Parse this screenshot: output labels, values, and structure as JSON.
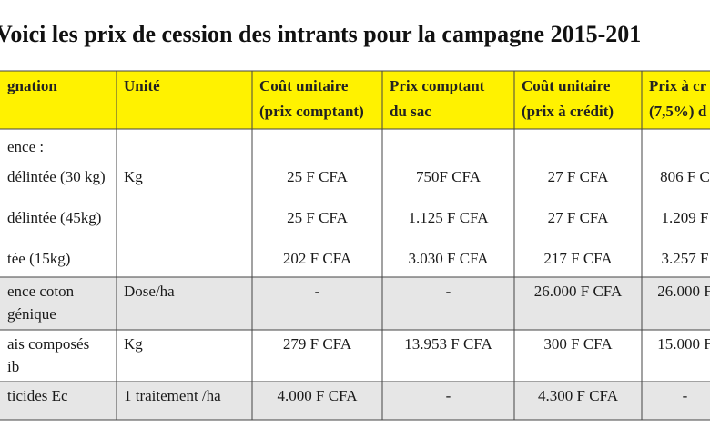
{
  "title": "Voici les prix de cession des intrants pour la campagne 2015-201",
  "table": {
    "header": [
      [
        "gnation"
      ],
      [
        "Unité"
      ],
      [
        "Coût unitaire",
        "(prix comptant)"
      ],
      [
        "Prix comptant",
        "du sac"
      ],
      [
        "Coût unitaire",
        "(prix à crédit)"
      ],
      [
        "Prix à cr",
        "(7,5%) d"
      ]
    ],
    "rows": [
      [
        [
          "ence :",
          "délintée (30 kg)",
          "délintée (45kg)",
          "tée (15kg)"
        ],
        [
          "Kg"
        ],
        [
          "25 F CFA",
          "25 F CFA",
          "202 F CFA"
        ],
        [
          "750F CFA",
          "1.125 F CFA",
          "3.030 F CFA"
        ],
        [
          "27 F CFA",
          "27 F CFA",
          "217 F CFA"
        ],
        [
          "806 F C",
          "1.209 F",
          "3.257 F"
        ]
      ],
      [
        [
          "ence coton",
          "génique"
        ],
        [
          "Dose/ha"
        ],
        [
          "-"
        ],
        [
          "-"
        ],
        [
          "26.000 F CFA"
        ],
        [
          "26.000 F"
        ]
      ],
      [
        [
          "ais composés",
          "ib"
        ],
        [
          "Kg"
        ],
        [
          "279 F CFA"
        ],
        [
          "13.953 F CFA"
        ],
        [
          "300 F CFA"
        ],
        [
          "15.000 F"
        ]
      ],
      [
        [
          "ticides Ec"
        ],
        [
          "1 traitement /ha"
        ],
        [
          "4.000 F CFA"
        ],
        [
          "-"
        ],
        [
          "4.300 F CFA"
        ],
        [
          "-"
        ]
      ]
    ]
  }
}
